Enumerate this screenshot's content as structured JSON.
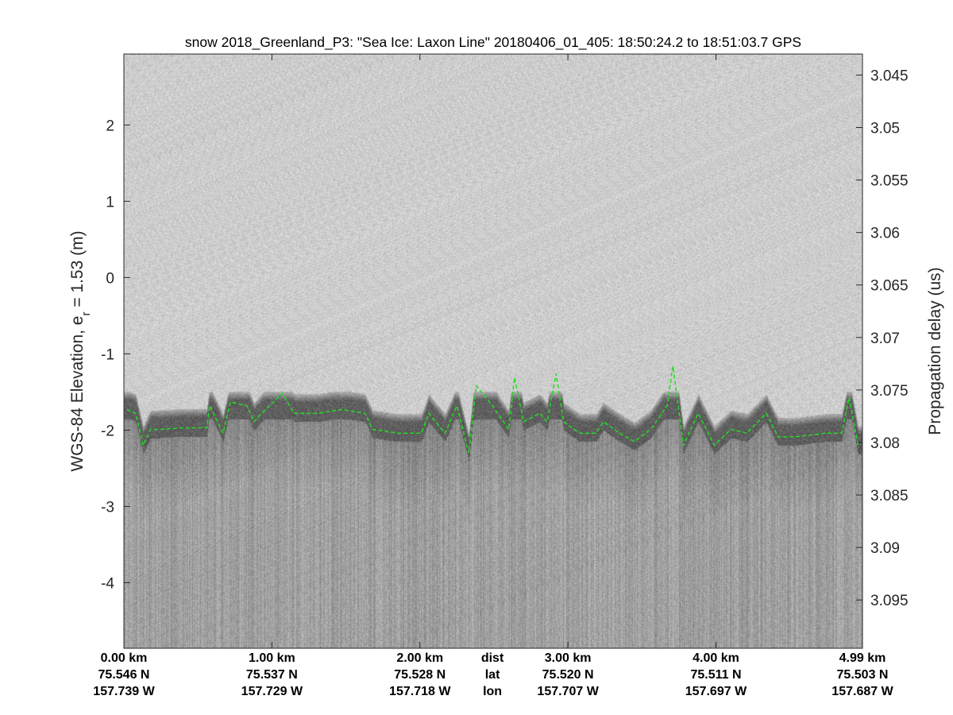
{
  "chart_data": {
    "type": "line",
    "title": "snow 2018_Greenland_P3: \"Sea Ice: Laxon Line\"  20180406_01_405: 18:50:24.2 to 18:51:03.7 GPS",
    "ylabel_main": "WGS-84 Elevation, e",
    "ylabel_sub": "r",
    "ylabel_rest": " = 1.53 (m)",
    "ylabel_right": "Propagation delay (us)",
    "xlim_km": [
      0,
      4.99
    ],
    "ylim": [
      -4.86,
      2.93
    ],
    "ylim_right": [
      3.043,
      3.0996
    ],
    "yticks": [
      2,
      1,
      0,
      -1,
      -2,
      -3,
      -4
    ],
    "yticks_right": [
      "3.045",
      "3.05",
      "3.055",
      "3.06",
      "3.065",
      "3.07",
      "3.075",
      "3.08",
      "3.085",
      "3.09",
      "3.095"
    ],
    "x_axis_rows": [
      {
        "label": "dist",
        "label_at_km": 2.49,
        "ticks_km": [
          0,
          1,
          2,
          3,
          4,
          4.99
        ],
        "values": [
          "0.00 km",
          "1.00 km",
          "2.00 km",
          "3.00 km",
          "4.00 km",
          "4.99 km"
        ]
      },
      {
        "label": "lat",
        "values": [
          "75.546 N",
          "75.537 N",
          "75.528 N",
          "75.520 N",
          "75.511 N",
          "75.503 N"
        ]
      },
      {
        "label": "lon",
        "values": [
          "157.739 W",
          "157.729 W",
          "157.718 W",
          "157.707 W",
          "157.697 W",
          "157.687 W"
        ]
      }
    ],
    "grid": false,
    "background": "radar echogram (grayscale)",
    "surface_pick": {
      "color": "#22dd22",
      "style": "dashed",
      "x_km": [
        0.02,
        0.08,
        0.13,
        0.18,
        0.24,
        0.4,
        0.56,
        0.58,
        0.67,
        0.72,
        0.83,
        0.88,
        0.93,
        1.07,
        1.15,
        1.31,
        1.47,
        1.63,
        1.68,
        1.85,
        2.01,
        2.06,
        2.17,
        2.25,
        2.33,
        2.38,
        2.49,
        2.6,
        2.64,
        2.7,
        2.81,
        2.86,
        2.92,
        2.97,
        3.08,
        3.19,
        3.24,
        3.35,
        3.45,
        3.56,
        3.67,
        3.71,
        3.78,
        3.88,
        3.99,
        4.1,
        4.21,
        4.34,
        4.42,
        4.53,
        4.74,
        4.85,
        4.9,
        4.96
      ],
      "elevation_m": [
        -1.73,
        -1.78,
        -2.2,
        -1.99,
        -1.99,
        -1.97,
        -1.97,
        -1.68,
        -2.04,
        -1.63,
        -1.68,
        -1.89,
        -1.78,
        -1.52,
        -1.78,
        -1.78,
        -1.73,
        -1.78,
        -1.99,
        -2.04,
        -2.04,
        -1.78,
        -2.04,
        -1.68,
        -2.3,
        -1.42,
        -1.68,
        -1.99,
        -1.31,
        -1.89,
        -1.78,
        -1.89,
        -1.26,
        -1.89,
        -2.04,
        -2.04,
        -1.89,
        -2.04,
        -2.15,
        -1.99,
        -1.68,
        -1.16,
        -2.2,
        -1.78,
        -2.2,
        -1.99,
        -2.04,
        -1.78,
        -2.09,
        -2.09,
        -2.04,
        -2.04,
        -1.57,
        -2.2
      ]
    }
  }
}
